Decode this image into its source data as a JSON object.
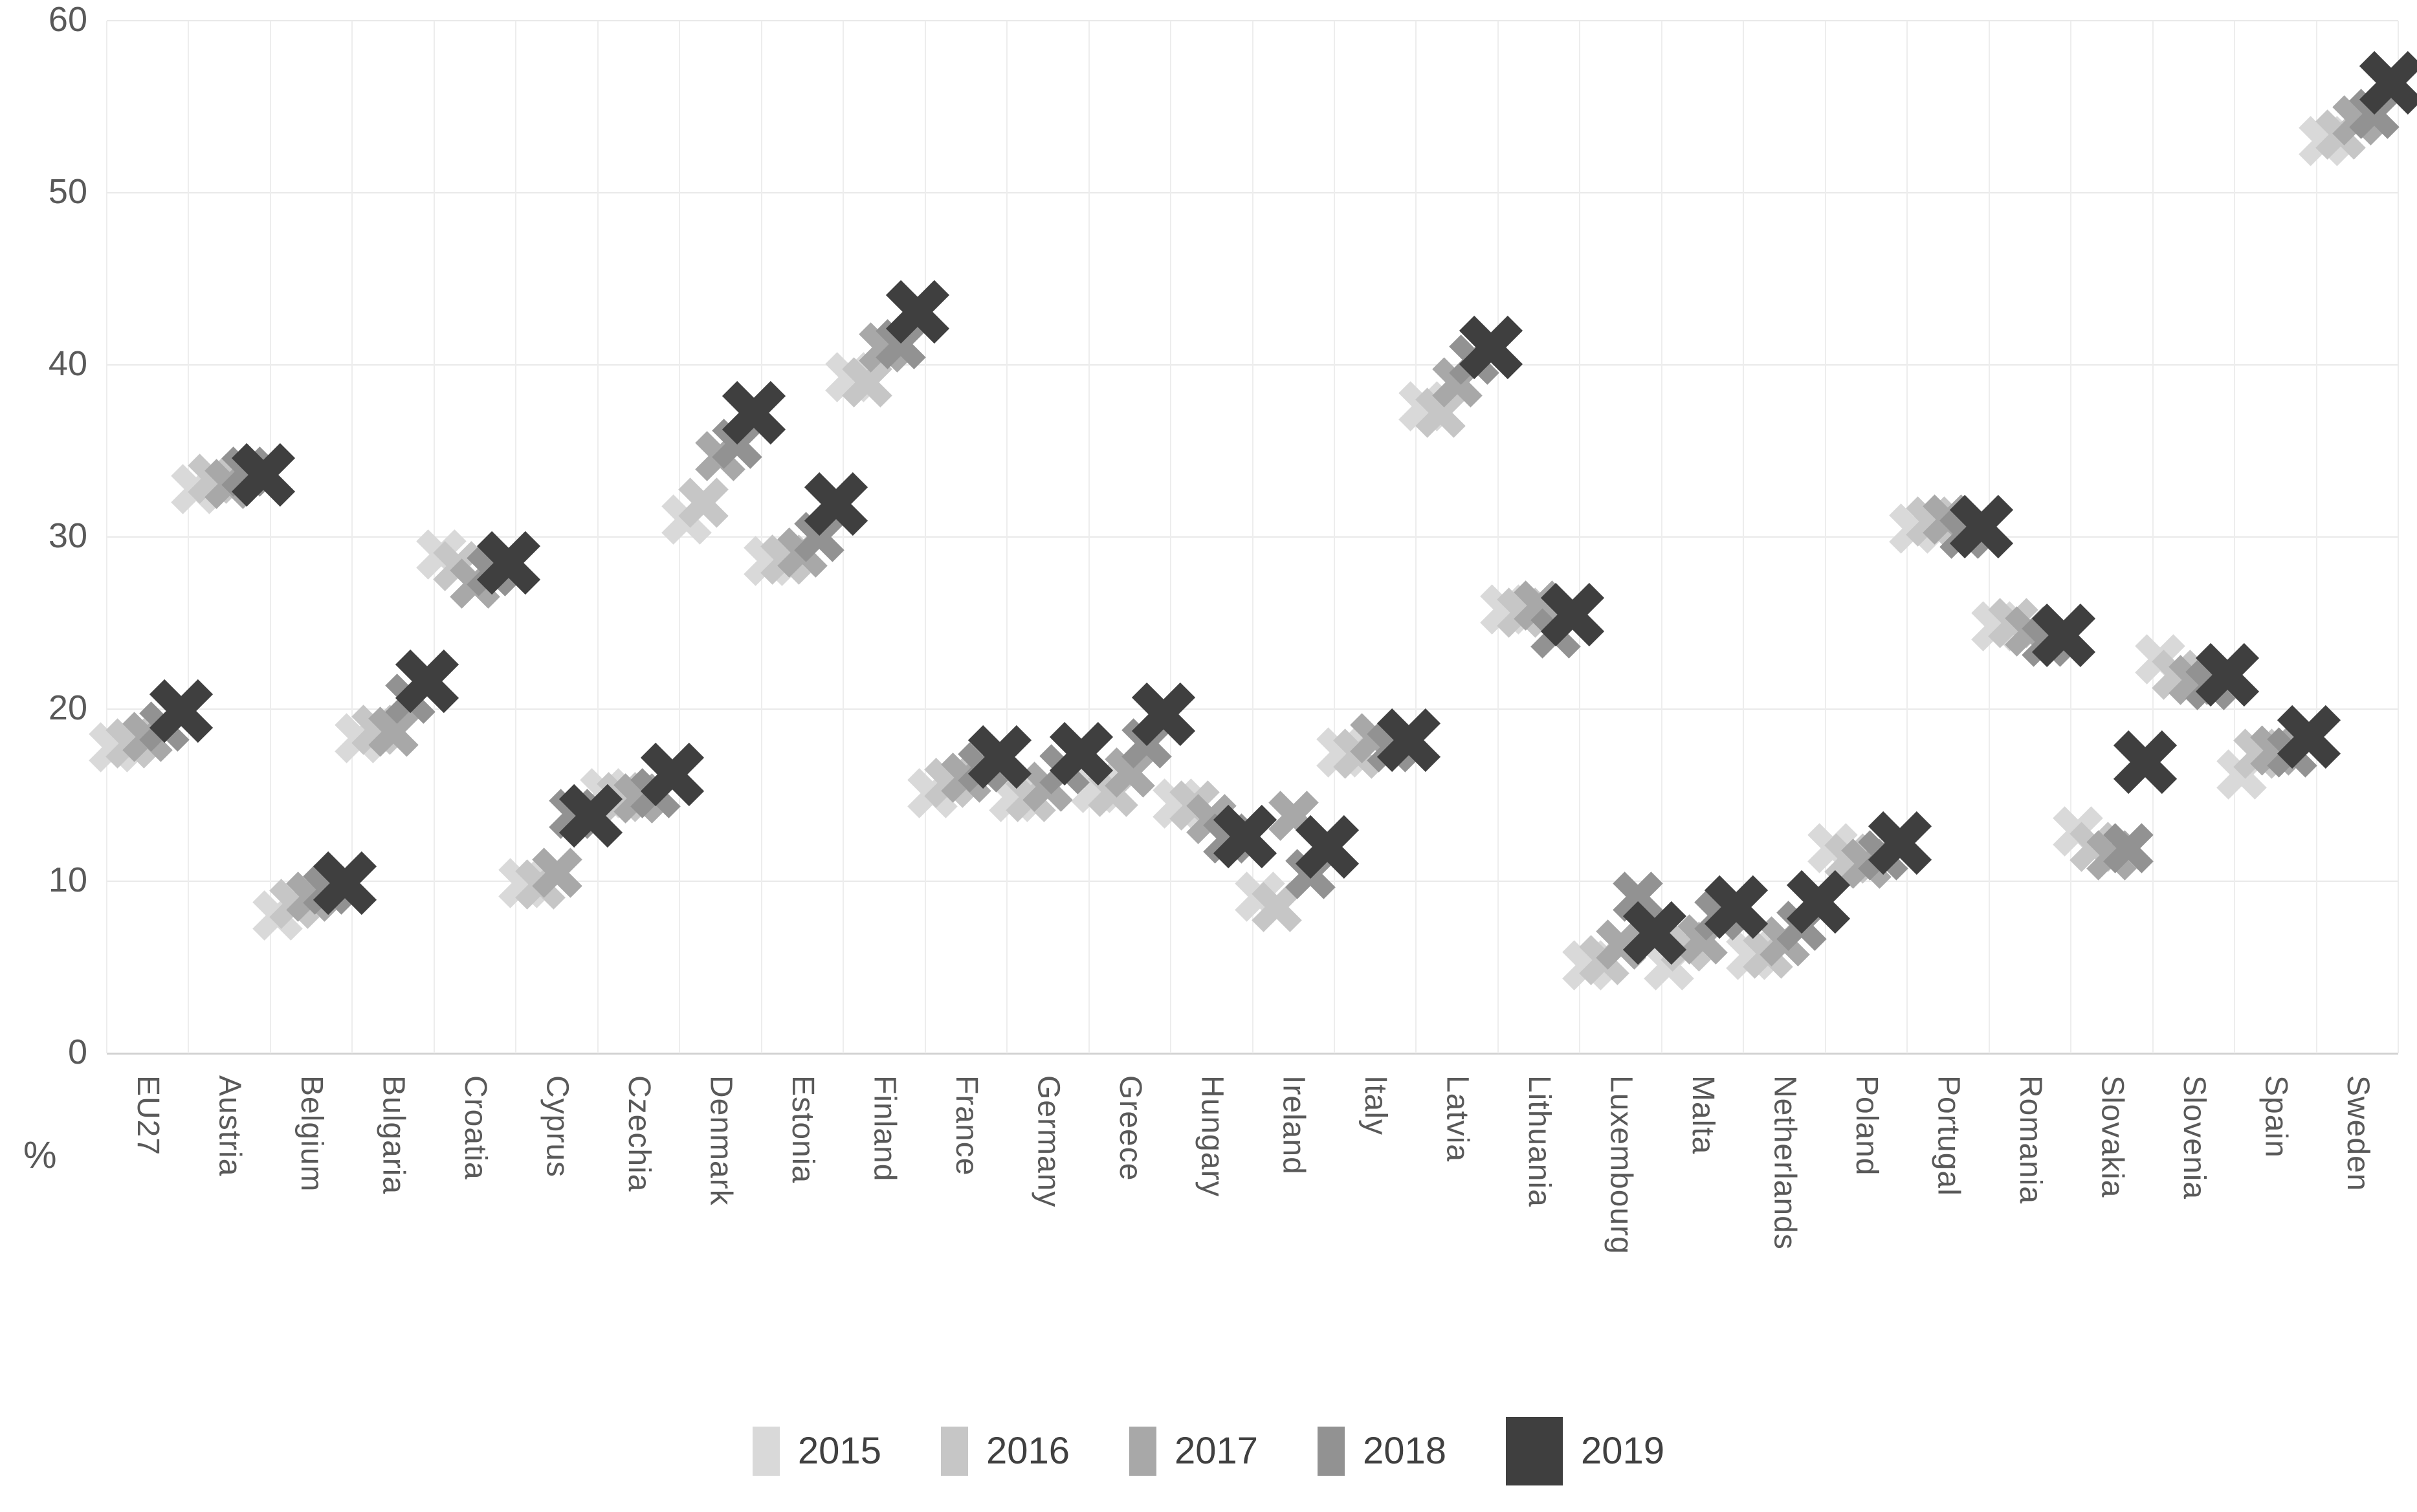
{
  "chart_data": {
    "type": "scatter",
    "marker_shape": "x-cross",
    "title": "",
    "xlabel": "",
    "ylabel": "%",
    "ylim": [
      0,
      60
    ],
    "yticks": [
      0,
      10,
      20,
      30,
      40,
      50,
      60
    ],
    "grid": true,
    "legend_position": "bottom",
    "categories": [
      "EU27",
      "Austria",
      "Belgium",
      "Bulgaria",
      "Croatia",
      "Cyprus",
      "Czechia",
      "Denmark",
      "Estonia",
      "Finland",
      "France",
      "Germany",
      "Greece",
      "Hungary",
      "Ireland",
      "Italy",
      "Latvia",
      "Lithuania",
      "Luxembourg",
      "Malta",
      "Netherlands",
      "Poland",
      "Portugal",
      "Romania",
      "Slovakia",
      "Slovenia",
      "Spain",
      "Sweden"
    ],
    "series": [
      {
        "name": "2015",
        "color": "#d9d9d9",
        "marker_size": 98,
        "values": [
          17.8,
          32.8,
          8.0,
          18.3,
          29.0,
          9.9,
          15.1,
          31.0,
          28.6,
          39.3,
          15.1,
          14.9,
          15.4,
          14.5,
          9.1,
          17.5,
          37.6,
          25.8,
          5.1,
          5.1,
          5.7,
          11.9,
          30.5,
          24.8,
          12.9,
          22.9,
          16.2,
          53.0
        ]
      },
      {
        "name": "2016",
        "color": "#c6c6c6",
        "marker_size": 98,
        "values": [
          18.0,
          33.4,
          8.7,
          18.8,
          28.3,
          9.8,
          14.9,
          32.0,
          28.7,
          39.0,
          15.7,
          14.9,
          15.2,
          14.4,
          8.5,
          17.4,
          37.2,
          25.6,
          5.4,
          6.2,
          5.8,
          11.3,
          30.9,
          25.0,
          12.0,
          22.0,
          17.4,
          53.4
        ]
      },
      {
        "name": "2017",
        "color": "#a8a8a8",
        "marker_size": 98,
        "values": [
          18.4,
          33.1,
          9.1,
          18.7,
          27.3,
          10.5,
          14.8,
          34.7,
          29.1,
          41.0,
          16.0,
          15.5,
          16.3,
          13.6,
          13.8,
          18.3,
          39.0,
          26.0,
          6.3,
          6.6,
          6.5,
          11.0,
          31.0,
          24.5,
          11.5,
          21.7,
          17.6,
          54.2
        ]
      },
      {
        "name": "2018",
        "color": "#929292",
        "marker_size": 98,
        "values": [
          19.0,
          33.8,
          9.5,
          20.6,
          28.0,
          13.9,
          15.1,
          35.4,
          30.0,
          41.2,
          16.6,
          16.5,
          18.0,
          12.5,
          10.4,
          17.8,
          40.3,
          24.4,
          9.1,
          8.0,
          7.4,
          11.5,
          30.2,
          23.9,
          11.9,
          21.4,
          17.5,
          54.6
        ]
      },
      {
        "name": "2019",
        "color": "#3f3f3f",
        "marker_size": 124,
        "values": [
          19.9,
          33.6,
          9.9,
          21.6,
          28.5,
          13.8,
          16.2,
          37.2,
          31.9,
          43.1,
          17.2,
          17.4,
          19.7,
          12.6,
          12.0,
          18.2,
          41.0,
          25.5,
          7.0,
          8.5,
          8.8,
          12.2,
          30.6,
          24.3,
          16.9,
          22.0,
          18.4,
          56.4
        ]
      }
    ],
    "layout": {
      "plot_left": 165,
      "plot_right": 3706,
      "plot_top": 32,
      "plot_bottom": 1628,
      "series_x_offsets": [
        -52,
        -26,
        0,
        26,
        52
      ],
      "xlabel_top": 1662,
      "legend_top": 2190
    }
  }
}
